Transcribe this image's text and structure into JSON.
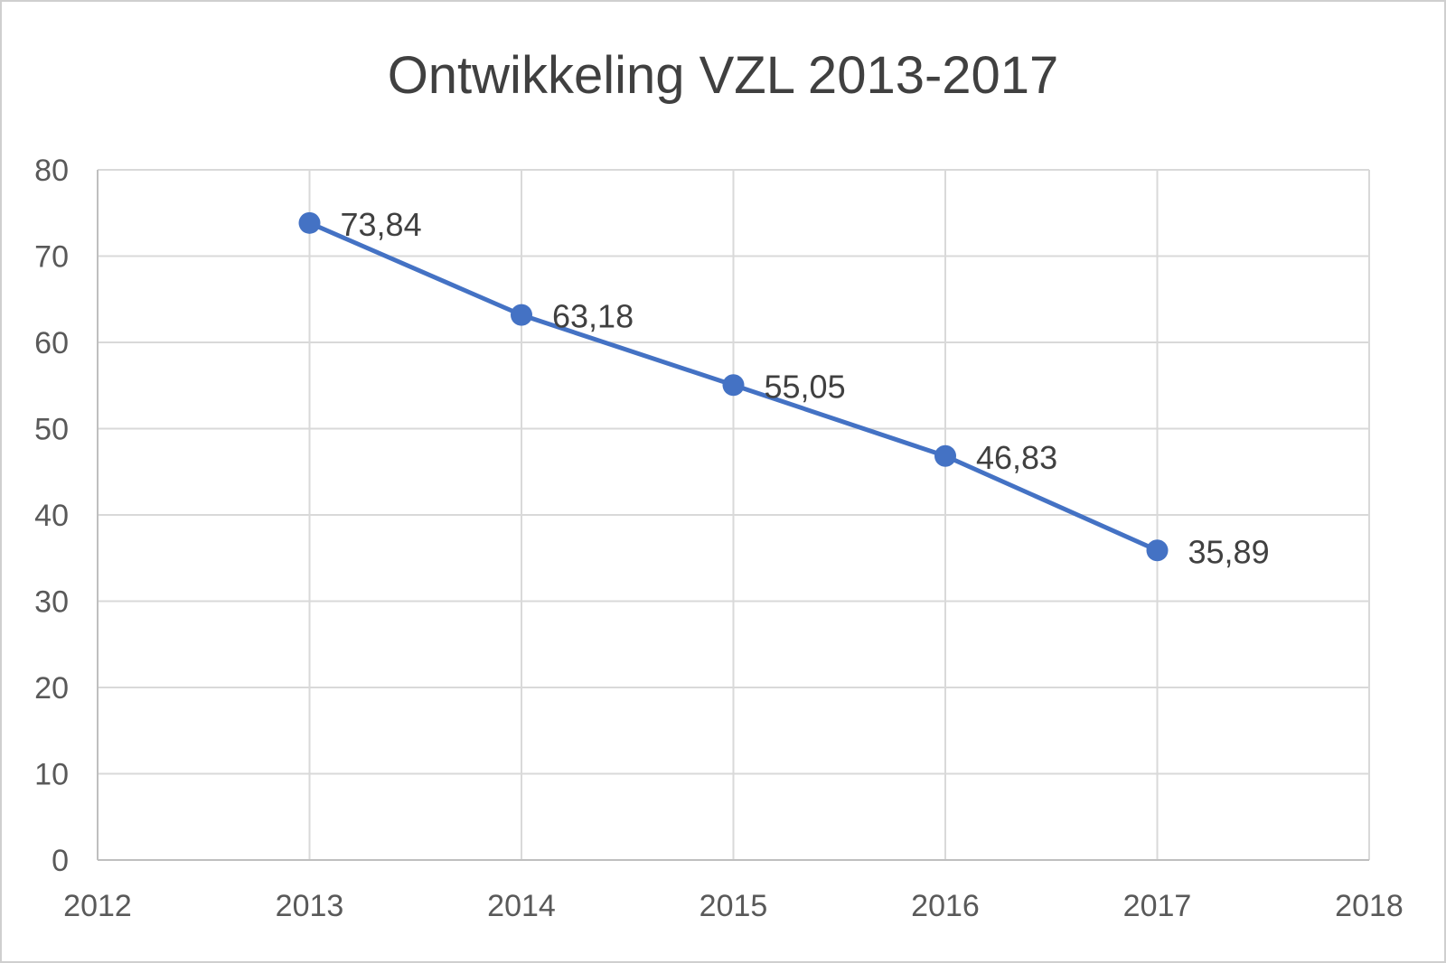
{
  "chart_data": {
    "type": "scatter",
    "title": "Ontwikkeling VZL 2013-2017",
    "xlabel": "",
    "ylabel": "",
    "xlim": [
      2012,
      2018
    ],
    "ylim": [
      0,
      80
    ],
    "x_ticks": [
      2012,
      2013,
      2014,
      2015,
      2016,
      2017,
      2018
    ],
    "y_ticks": [
      0,
      10,
      20,
      30,
      40,
      50,
      60,
      70,
      80
    ],
    "grid": true,
    "legend": "none",
    "series": [
      {
        "color": "#4472c4",
        "x": [
          2013,
          2014,
          2015,
          2016,
          2017
        ],
        "y": [
          73.84,
          63.18,
          55.05,
          46.83,
          35.89
        ],
        "labels": [
          "73,84",
          "63,18",
          "55,05",
          "46,83",
          "35,89"
        ]
      }
    ]
  }
}
